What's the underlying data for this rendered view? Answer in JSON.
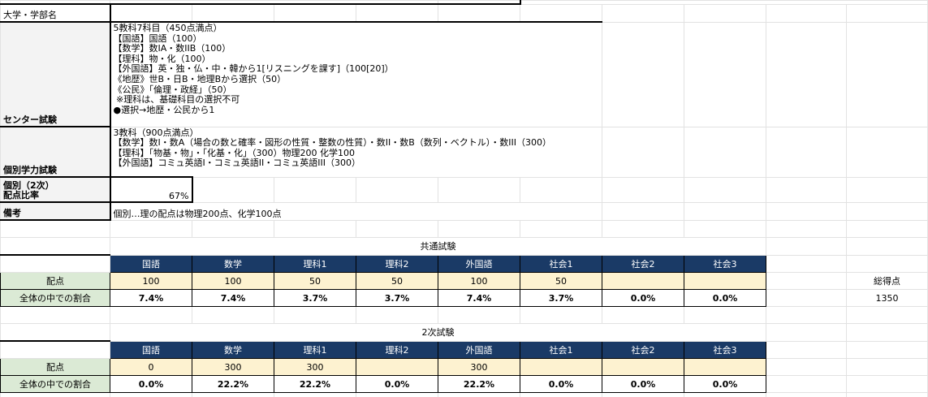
{
  "info": {
    "university_label": "大学・学部名",
    "center_label": "センター試験",
    "center_text": "5教科7科目（450点満点）\n【国語】国語（100）\n【数学】数IA・数IIB（100）\n【理科】物・化（100）\n【外国語】英・独・仏・中・韓から1[リスニングを課す]（100[20]）\n《地歴》世B・日B・地理Bから選択（50）\n《公民》「倫理・政経」（50）\n ※理科は、基礎科目の選択不可\n●選択→地歴・公民から1",
    "individual_label": "個別学力試験",
    "individual_text": "3教科（900点満点）\n【数学】数I・数A（場合の数と確率・図形の性質・整数の性質）・数II・数B（数列・ベクトル）・数III（300）\n【理科】「物基・物」・「化基・化」（300）物理200 化学100\n【外国語】コミュ英語I・コミュ英語II・コミュ英語III（300）",
    "ratio_label": "個別（2次）\n配点比率",
    "ratio_value": "67%",
    "notes_label": "備考",
    "notes_text": "個別…理の配点は物理200点、化学100点"
  },
  "common_exam": {
    "title": "共通試験",
    "subjects": [
      "国語",
      "数学",
      "理科1",
      "理科2",
      "外国語",
      "社会1",
      "社会2",
      "社会3"
    ],
    "points_label": "配点",
    "points": [
      "100",
      "100",
      "50",
      "50",
      "100",
      "50",
      "",
      ""
    ],
    "share_label": "全体の中での割合",
    "shares": [
      "7.4%",
      "7.4%",
      "3.7%",
      "3.7%",
      "7.4%",
      "3.7%",
      "0.0%",
      "0.0%"
    ]
  },
  "total": {
    "label": "総得点",
    "value": "1350"
  },
  "second_exam": {
    "title": "2次試験",
    "subjects": [
      "国語",
      "数学",
      "理科1",
      "理科2",
      "外国語",
      "社会1",
      "社会2",
      "社会3"
    ],
    "points_label": "配点",
    "points": [
      "0",
      "300",
      "300",
      "",
      "300",
      "",
      "",
      ""
    ],
    "share_label": "全体の中での割合",
    "shares": [
      "0.0%",
      "22.2%",
      "22.2%",
      "0.0%",
      "22.2%",
      "0.0%",
      "0.0%",
      "0.0%"
    ]
  },
  "colors": {
    "header_bg": "#1a3a66",
    "points_bg": "#fdf2d0",
    "label_bg": "#dbead5"
  }
}
